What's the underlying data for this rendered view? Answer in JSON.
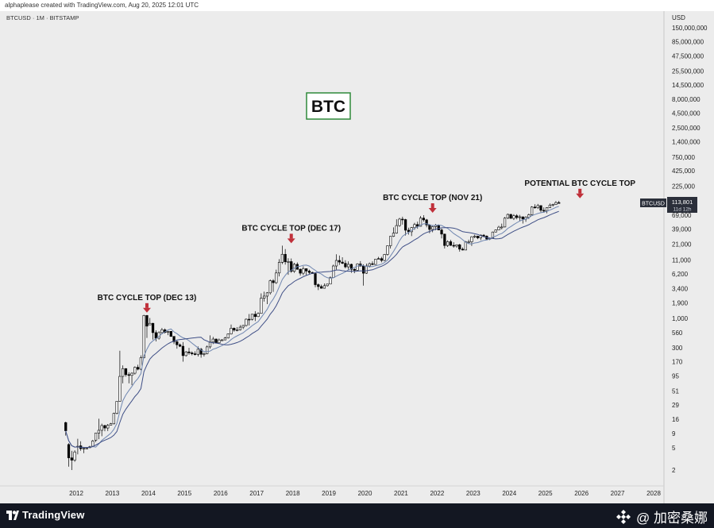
{
  "header": {
    "caption": "alphaplease created with TradingView.com, Aug 20, 2025 12:01 UTC"
  },
  "chart_data": {
    "type": "candlestick",
    "symbol_line": "BTCUSD · 1M · BITSTAMP",
    "title": "BTC",
    "y_axis": {
      "scale": "log",
      "currency": "USD",
      "ticks": [
        "150,000,000",
        "85,000,000",
        "47,500,000",
        "25,500,000",
        "14,500,000",
        "8,000,000",
        "4,500,000",
        "2,500,000",
        "1,400,000",
        "750,000",
        "425,000",
        "225,000",
        "125,000",
        "69,000",
        "39,000",
        "21,000",
        "11,000",
        "6,200",
        "3,400",
        "1,900",
        "1,000",
        "560",
        "300",
        "170",
        "95",
        "51",
        "29",
        "16",
        "9",
        "5",
        "2"
      ]
    },
    "x_axis": {
      "ticks": [
        "2012",
        "2013",
        "2014",
        "2015",
        "2016",
        "2017",
        "2018",
        "2019",
        "2020",
        "2021",
        "2022",
        "2023",
        "2024",
        "2025",
        "2026",
        "2027",
        "2028"
      ]
    },
    "price_label": {
      "symbol": "BTCUSD",
      "price": "113,801",
      "countdown": "11d 12h"
    },
    "annotations": [
      {
        "label": "BTC CYCLE TOP (DEC 13)",
        "date": "2013-12",
        "price": 1150
      },
      {
        "label": "BTC CYCLE TOP (DEC 17)",
        "date": "2017-12",
        "price": 19800
      },
      {
        "label": "BTC CYCLE TOP (NOV 21)",
        "date": "2021-11",
        "price": 69000
      },
      {
        "label": "POTENTIAL BTC CYCLE TOP",
        "date": "2025-12",
        "price": 125000
      }
    ],
    "series": [
      {
        "type": "ohlc",
        "interval": "monthly",
        "start": "2011-09",
        "points": [
          [
            14.0,
            14.5,
            8.2,
            10.0
          ],
          [
            5.7,
            6.0,
            2.3,
            3.3
          ],
          [
            3.3,
            4.4,
            2.0,
            3.0
          ],
          [
            3.0,
            4.5,
            2.8,
            4.2
          ],
          [
            5.3,
            7.2,
            3.8,
            5.3
          ],
          [
            5.4,
            6.5,
            4.4,
            4.8
          ],
          [
            4.9,
            5.1,
            4.0,
            4.9
          ],
          [
            4.9,
            5.1,
            4.8,
            4.9
          ],
          [
            5.0,
            5.4,
            4.9,
            5.2
          ],
          [
            5.3,
            6.9,
            5.3,
            6.6
          ],
          [
            6.8,
            9.0,
            6.3,
            9.1
          ],
          [
            9.1,
            16.4,
            7.1,
            10.2
          ],
          [
            10.2,
            13.4,
            8.0,
            12.4
          ],
          [
            12.4,
            12.8,
            9.8,
            11.2
          ],
          [
            11.2,
            13.2,
            9.9,
            12.5
          ],
          [
            12.6,
            13.8,
            12.6,
            13.4
          ],
          [
            13.3,
            21.0,
            13.0,
            20.4
          ],
          [
            20.4,
            33.0,
            19.6,
            33.4
          ],
          [
            33.4,
            266,
            33.0,
            93.0
          ],
          [
            93.0,
            146,
            70,
            128
          ],
          [
            128,
            130,
            92,
            100
          ],
          [
            100,
            110,
            70,
            97
          ],
          [
            97,
            110,
            65,
            106
          ],
          [
            106,
            140,
            100,
            135
          ],
          [
            135,
            150,
            119,
            125
          ],
          [
            125,
            220,
            120,
            200
          ],
          [
            200,
            1163,
            195,
            1130
          ],
          [
            1130,
            1150,
            450,
            730
          ],
          [
            770,
            1020,
            760,
            820
          ],
          [
            820,
            835,
            420,
            560
          ],
          [
            560,
            615,
            390,
            445
          ],
          [
            445,
            590,
            420,
            560
          ],
          [
            560,
            680,
            530,
            628
          ],
          [
            628,
            665,
            540,
            565
          ],
          [
            565,
            600,
            505,
            590
          ],
          [
            590,
            590,
            470,
            480
          ],
          [
            480,
            480,
            350,
            385
          ],
          [
            385,
            420,
            290,
            340
          ],
          [
            340,
            360,
            310,
            320
          ],
          [
            320,
            380,
            170,
            218
          ],
          [
            218,
            263,
            210,
            254
          ],
          [
            254,
            300,
            225,
            244
          ],
          [
            244,
            260,
            220,
            235
          ],
          [
            235,
            260,
            220,
            230
          ],
          [
            230,
            317,
            210,
            284
          ],
          [
            284,
            300,
            200,
            230
          ],
          [
            230,
            250,
            210,
            236
          ],
          [
            236,
            330,
            230,
            312
          ],
          [
            312,
            500,
            290,
            380
          ],
          [
            380,
            470,
            350,
            430
          ],
          [
            430,
            440,
            360,
            368
          ],
          [
            368,
            440,
            355,
            415
          ],
          [
            415,
            430,
            405,
            415
          ],
          [
            415,
            470,
            410,
            450
          ],
          [
            450,
            540,
            440,
            530
          ],
          [
            530,
            780,
            520,
            670
          ],
          [
            670,
            690,
            580,
            620
          ],
          [
            620,
            700,
            590,
            625
          ],
          [
            625,
            760,
            610,
            700
          ],
          [
            700,
            770,
            650,
            750
          ],
          [
            750,
            1000,
            720,
            970
          ],
          [
            970,
            1200,
            750,
            965
          ],
          [
            965,
            1200,
            920,
            1190
          ],
          [
            1190,
            1350,
            900,
            1080
          ],
          [
            1080,
            1280,
            1060,
            1230
          ],
          [
            1230,
            2800,
            1230,
            2300
          ],
          [
            2300,
            3000,
            2000,
            2500
          ],
          [
            2500,
            2950,
            1800,
            2860
          ],
          [
            2860,
            4950,
            2670,
            4700
          ],
          [
            4700,
            5000,
            2970,
            4340
          ],
          [
            4340,
            7400,
            4120,
            6460
          ],
          [
            6460,
            11400,
            5600,
            10000
          ],
          [
            10000,
            19800,
            9300,
            13900
          ],
          [
            13900,
            17200,
            9100,
            10200
          ],
          [
            10200,
            11800,
            6000,
            10300
          ],
          [
            10300,
            11700,
            6500,
            6900
          ],
          [
            6900,
            9800,
            6500,
            9200
          ],
          [
            9200,
            9950,
            7400,
            7500
          ],
          [
            7500,
            7800,
            5800,
            6400
          ],
          [
            6400,
            8500,
            5900,
            7700
          ],
          [
            7700,
            7800,
            5900,
            7000
          ],
          [
            7000,
            7400,
            6100,
            6600
          ],
          [
            6600,
            6800,
            6200,
            6300
          ],
          [
            6300,
            6600,
            3600,
            4000
          ],
          [
            4000,
            4200,
            3200,
            3700
          ],
          [
            3700,
            4000,
            3400,
            3450
          ],
          [
            3450,
            4200,
            3400,
            3830
          ],
          [
            3830,
            4100,
            3700,
            4100
          ],
          [
            4100,
            5600,
            4100,
            5350
          ],
          [
            5350,
            9100,
            5300,
            8600
          ],
          [
            8600,
            13900,
            7400,
            10800
          ],
          [
            10800,
            13200,
            9000,
            10100
          ],
          [
            10100,
            12300,
            9300,
            9600
          ],
          [
            9600,
            10900,
            7800,
            8300
          ],
          [
            8300,
            10400,
            7300,
            9200
          ],
          [
            9200,
            9500,
            6500,
            7500
          ],
          [
            7500,
            7800,
            6400,
            7200
          ],
          [
            7200,
            9600,
            6900,
            9350
          ],
          [
            9350,
            10500,
            8500,
            8550
          ],
          [
            8550,
            9200,
            3850,
            6400
          ],
          [
            6400,
            9500,
            6200,
            8600
          ],
          [
            8600,
            9900,
            8100,
            9450
          ],
          [
            9450,
            10400,
            8900,
            9150
          ],
          [
            9150,
            11400,
            9000,
            11350
          ],
          [
            11350,
            12500,
            11200,
            11650
          ],
          [
            11650,
            12500,
            10000,
            10800
          ],
          [
            10800,
            14100,
            10400,
            13800
          ],
          [
            13800,
            19900,
            13200,
            19700
          ],
          [
            19700,
            29300,
            17600,
            28990
          ],
          [
            28990,
            41900,
            28200,
            33100
          ],
          [
            33100,
            58400,
            32300,
            45100
          ],
          [
            45100,
            61800,
            43000,
            58800
          ],
          [
            58800,
            64900,
            46900,
            57700
          ],
          [
            57700,
            59500,
            30000,
            37300
          ],
          [
            37300,
            41300,
            31100,
            35000
          ],
          [
            35000,
            42600,
            29300,
            41500
          ],
          [
            41500,
            50500,
            38000,
            47100
          ],
          [
            47100,
            52900,
            39600,
            43800
          ],
          [
            43800,
            67000,
            43200,
            61300
          ],
          [
            61300,
            69000,
            53000,
            57000
          ],
          [
            57000,
            59200,
            42000,
            46200
          ],
          [
            46200,
            48000,
            33000,
            38500
          ],
          [
            38500,
            45800,
            34300,
            43200
          ],
          [
            43200,
            48200,
            37200,
            45500
          ],
          [
            45500,
            47400,
            37700,
            37700
          ],
          [
            37700,
            40000,
            26700,
            31800
          ],
          [
            31800,
            32400,
            17600,
            19900
          ],
          [
            19900,
            24600,
            18800,
            23300
          ],
          [
            23300,
            25200,
            19600,
            20050
          ],
          [
            20050,
            22800,
            18200,
            19420
          ],
          [
            19420,
            20900,
            18200,
            20500
          ],
          [
            20500,
            21400,
            15500,
            17150
          ],
          [
            17150,
            18400,
            16300,
            16550
          ],
          [
            16550,
            23950,
            16500,
            23130
          ],
          [
            23130,
            25250,
            21400,
            23150
          ],
          [
            23150,
            29200,
            19600,
            28480
          ],
          [
            28480,
            31000,
            26900,
            29230
          ],
          [
            29230,
            29800,
            25800,
            27200
          ],
          [
            27200,
            31400,
            24800,
            30470
          ],
          [
            30470,
            31800,
            28900,
            29230
          ],
          [
            29230,
            30200,
            25300,
            25930
          ],
          [
            25930,
            27500,
            24900,
            26960
          ],
          [
            26960,
            35100,
            26550,
            34650
          ],
          [
            34650,
            38400,
            34100,
            37710
          ],
          [
            37710,
            44700,
            37600,
            42270
          ],
          [
            42270,
            48900,
            38500,
            42580
          ],
          [
            42580,
            64000,
            41900,
            61130
          ],
          [
            61130,
            73800,
            59000,
            71330
          ],
          [
            71330,
            72700,
            59600,
            60610
          ],
          [
            60610,
            71900,
            56500,
            67490
          ],
          [
            67490,
            71900,
            58400,
            62680
          ],
          [
            62680,
            70000,
            53500,
            64620
          ],
          [
            64620,
            65000,
            49000,
            58970
          ],
          [
            58970,
            66000,
            52500,
            63330
          ],
          [
            63330,
            73600,
            58900,
            70230
          ],
          [
            70230,
            99800,
            66800,
            96400
          ],
          [
            96400,
            108300,
            90500,
            93430
          ],
          [
            93430,
            109600,
            89200,
            102400
          ],
          [
            102400,
            102500,
            78200,
            84350
          ],
          [
            84350,
            95000,
            76600,
            82550
          ],
          [
            82550,
            95800,
            74500,
            94200
          ],
          [
            94200,
            111900,
            93400,
            104600
          ],
          [
            104600,
            110500,
            98200,
            107100
          ],
          [
            107100,
            123200,
            105100,
            115800
          ],
          [
            115800,
            124300,
            112000,
            113800
          ]
        ]
      },
      {
        "name": "",
        "type": "moving-average",
        "length": 10,
        "color": "#6f86b0"
      },
      {
        "name": "",
        "type": "moving-average",
        "length": 20,
        "color": "#3f4f86"
      }
    ]
  },
  "footer": {
    "brand": "TradingView",
    "watermark": "@ 加密桑娜"
  },
  "colors": {
    "background": "#ececec",
    "candle_up_fill": "#ffffff",
    "candle_down_fill": "#000000",
    "candle_stroke": "#000000",
    "arrow": "#c0303a",
    "title_box_border": "#2f8a3a",
    "bottom_bar": "#131722"
  },
  "icons": [
    "tradingview-logo-icon",
    "watermark-badge-icon",
    "down-arrow-icon"
  ]
}
